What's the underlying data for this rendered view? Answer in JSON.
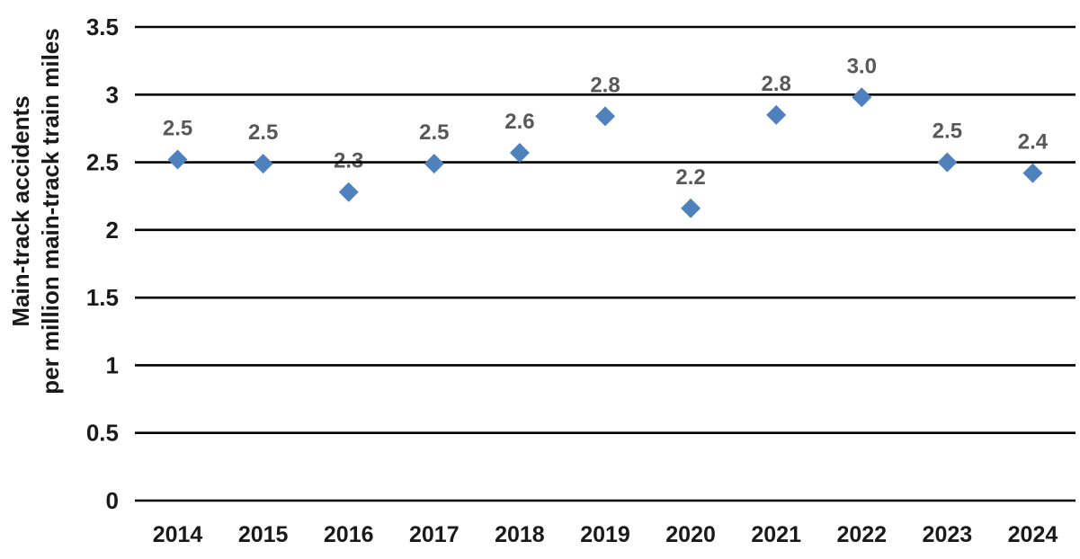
{
  "page": {
    "background": "#ffffff"
  },
  "chart_data": {
    "type": "scatter",
    "title": "",
    "xlabel": "",
    "ylabel_line1": "Main-track accidents",
    "ylabel_line2": "per million main-track train miles",
    "categories": [
      "2014",
      "2015",
      "2016",
      "2017",
      "2018",
      "2019",
      "2020",
      "2021",
      "2022",
      "2023",
      "2024"
    ],
    "values": [
      2.52,
      2.49,
      2.28,
      2.49,
      2.57,
      2.84,
      2.16,
      2.85,
      2.98,
      2.5,
      2.42
    ],
    "point_labels": [
      "2.5",
      "2.5",
      "2.3",
      "2.5",
      "2.6",
      "2.8",
      "2.2",
      "2.8",
      "3.0",
      "2.5",
      "2.4"
    ],
    "ylim": [
      0,
      3.5
    ],
    "ytick_step": 0.5,
    "ytick_labels": [
      "0",
      "0.5",
      "1",
      "1.5",
      "2",
      "2.5",
      "3",
      "3.5"
    ],
    "grid": "horizontal-only",
    "legend": "none",
    "marker_shape": "diamond",
    "colors": {
      "marker": "#4F81BD",
      "point_label": "#595959",
      "axis_text": "#1a1a1a",
      "gridline": "#000000"
    }
  }
}
